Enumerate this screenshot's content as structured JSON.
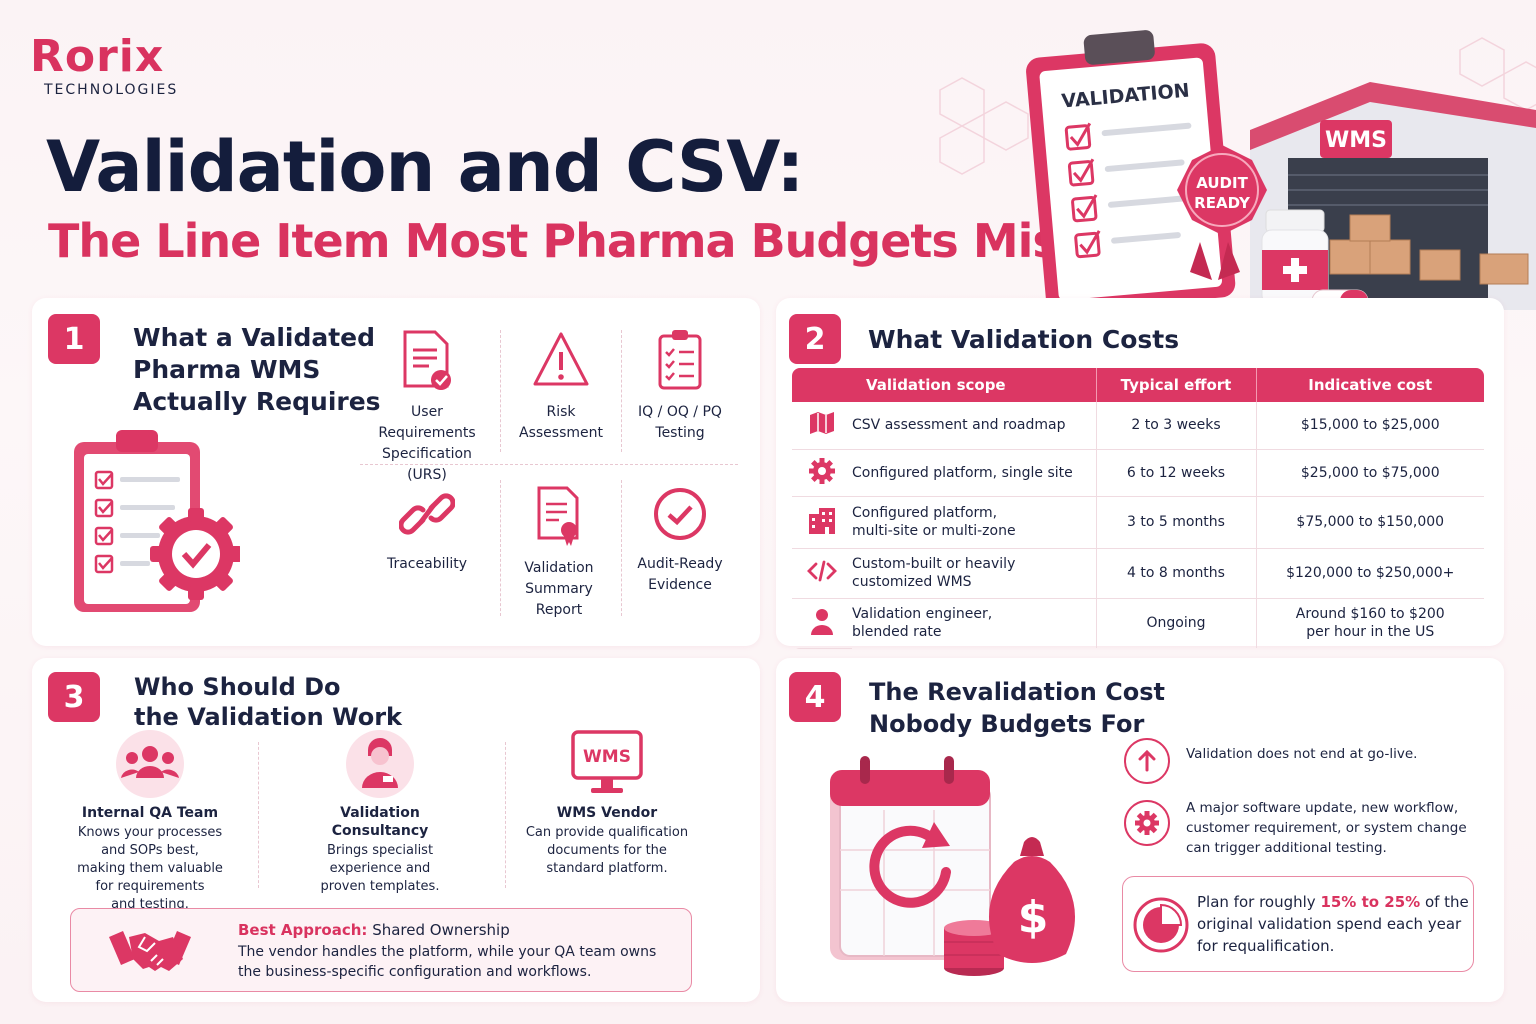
{
  "brand": {
    "name": "Rorix",
    "sub": "TECHNOLOGIES"
  },
  "title": {
    "line1": "Validation and CSV:",
    "line2": "The Line Item Most Pharma Budgets Miss"
  },
  "hero": {
    "clipboard_label": "VALIDATION",
    "badge_line1": "AUDIT",
    "badge_line2": "READY",
    "warehouse_label": "WMS"
  },
  "section1": {
    "number": "1",
    "title_l1": "What a Validated",
    "title_l2": "Pharma WMS",
    "title_l3": "Actually Requires",
    "items": [
      {
        "l1": "User Requirements",
        "l2": "Specification (URS)",
        "l3": "",
        "icon": "document-check-icon"
      },
      {
        "l1": "Risk",
        "l2": "Assessment",
        "l3": "",
        "icon": "warning-icon"
      },
      {
        "l1": "IQ / OQ / PQ",
        "l2": "Testing",
        "l3": "",
        "icon": "checklist-icon"
      },
      {
        "l1": "Traceability",
        "l2": "",
        "l3": "",
        "icon": "link-icon"
      },
      {
        "l1": "Validation",
        "l2": "Summary",
        "l3": "Report",
        "icon": "certificate-icon"
      },
      {
        "l1": "Audit-Ready",
        "l2": "Evidence",
        "l3": "",
        "icon": "check-circle-icon"
      }
    ]
  },
  "section2": {
    "number": "2",
    "title": "What Validation Costs",
    "headers": [
      "Validation scope",
      "Typical effort",
      "Indicative cost"
    ],
    "rows": [
      {
        "icon": "map-icon",
        "scope_l1": "CSV assessment and roadmap",
        "scope_l2": "",
        "effort": "2 to 3 weeks",
        "cost_l1": "$15,000 to $25,000",
        "cost_l2": ""
      },
      {
        "icon": "gear-icon",
        "scope_l1": "Configured platform, single site",
        "scope_l2": "",
        "effort": "6 to 12 weeks",
        "cost_l1": "$25,000 to $75,000",
        "cost_l2": ""
      },
      {
        "icon": "building-icon",
        "scope_l1": "Configured platform,",
        "scope_l2": "multi-site or multi-zone",
        "effort": "3 to 5 months",
        "cost_l1": "$75,000 to $150,000",
        "cost_l2": ""
      },
      {
        "icon": "code-icon",
        "scope_l1": "Custom-built or heavily",
        "scope_l2": "customized WMS",
        "effort": "4 to 8 months",
        "cost_l1": "$120,000 to $250,000+",
        "cost_l2": ""
      },
      {
        "icon": "person-icon",
        "scope_l1": "Validation engineer,",
        "scope_l2": "blended rate",
        "effort": "Ongoing",
        "cost_l1": "Around $160 to $200",
        "cost_l2": "per hour in the US"
      }
    ]
  },
  "section3": {
    "number": "3",
    "title_l1": "Who Should Do",
    "title_l2": "the Validation Work",
    "who": [
      {
        "icon": "team-icon",
        "name": "Internal QA Team",
        "desc": [
          "Knows your processes",
          "and SOPs best,",
          "making them valuable",
          "for requirements",
          "and testing."
        ]
      },
      {
        "icon": "consultant-icon",
        "name": "Validation Consultancy",
        "desc": [
          "Brings specialist",
          "experience and",
          "proven templates."
        ]
      },
      {
        "icon": "monitor-icon",
        "icon_text": "WMS",
        "name": "WMS Vendor",
        "desc": [
          "Can provide qualification",
          "documents for the",
          "standard platform."
        ]
      }
    ],
    "best": {
      "label": "Best Approach:",
      "value": "Shared Ownership",
      "l1": "The vendor handles the platform, while your QA team owns",
      "l2": "the business-specific configuration and workflows."
    }
  },
  "section4": {
    "number": "4",
    "title_l1": "The Revalidation Cost",
    "title_l2": "Nobody Budgets For",
    "points": [
      {
        "icon": "arrow-up-icon",
        "lines": [
          "Validation does not end at go-live."
        ]
      },
      {
        "icon": "gear-icon",
        "lines": [
          "A major software update, new workflow,",
          "customer requirement, or system change",
          "can trigger additional testing."
        ]
      }
    ],
    "plan": {
      "pre": "Plan for roughly ",
      "highlight": "15% to 25%",
      "post": " of the",
      "l2": "original validation spend each year",
      "l3": "for requalification."
    }
  },
  "colors": {
    "accent": "#dc3764",
    "navy": "#141d3c",
    "background": "#fbf3f5"
  }
}
